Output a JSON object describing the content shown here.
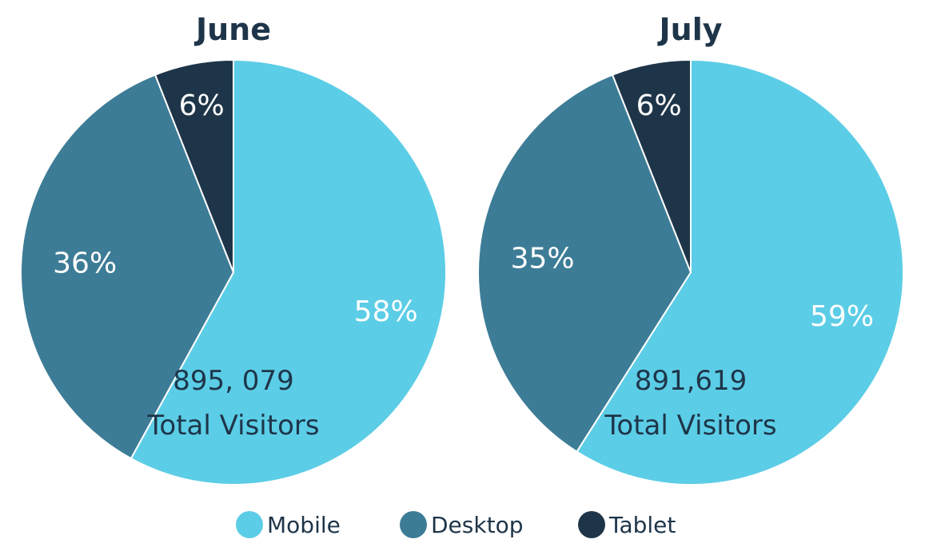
{
  "chart_data": [
    {
      "type": "pie",
      "title": "June",
      "categories": [
        "Mobile",
        "Desktop",
        "Tablet"
      ],
      "values": [
        58,
        36,
        6
      ],
      "labels": [
        "58%",
        "36%",
        "6%"
      ],
      "annotation": {
        "total": "895, 079",
        "caption": "Total Visitors"
      }
    },
    {
      "type": "pie",
      "title": "July",
      "categories": [
        "Mobile",
        "Desktop",
        "Tablet"
      ],
      "values": [
        59,
        35,
        6
      ],
      "labels": [
        "59%",
        "35%",
        "6%"
      ],
      "annotation": {
        "total": "891,619",
        "caption": "Total Visitors"
      }
    }
  ],
  "legend": {
    "placement": "bottom",
    "items": [
      {
        "label": "Mobile",
        "color": "#5ccde6"
      },
      {
        "label": "Desktop",
        "color": "#3d7c96"
      },
      {
        "label": "Tablet",
        "color": "#1e3549"
      }
    ]
  },
  "colors": {
    "slice_border": "#ffffff",
    "text_dark": "#1e3549",
    "text_light": "#ffffff"
  }
}
